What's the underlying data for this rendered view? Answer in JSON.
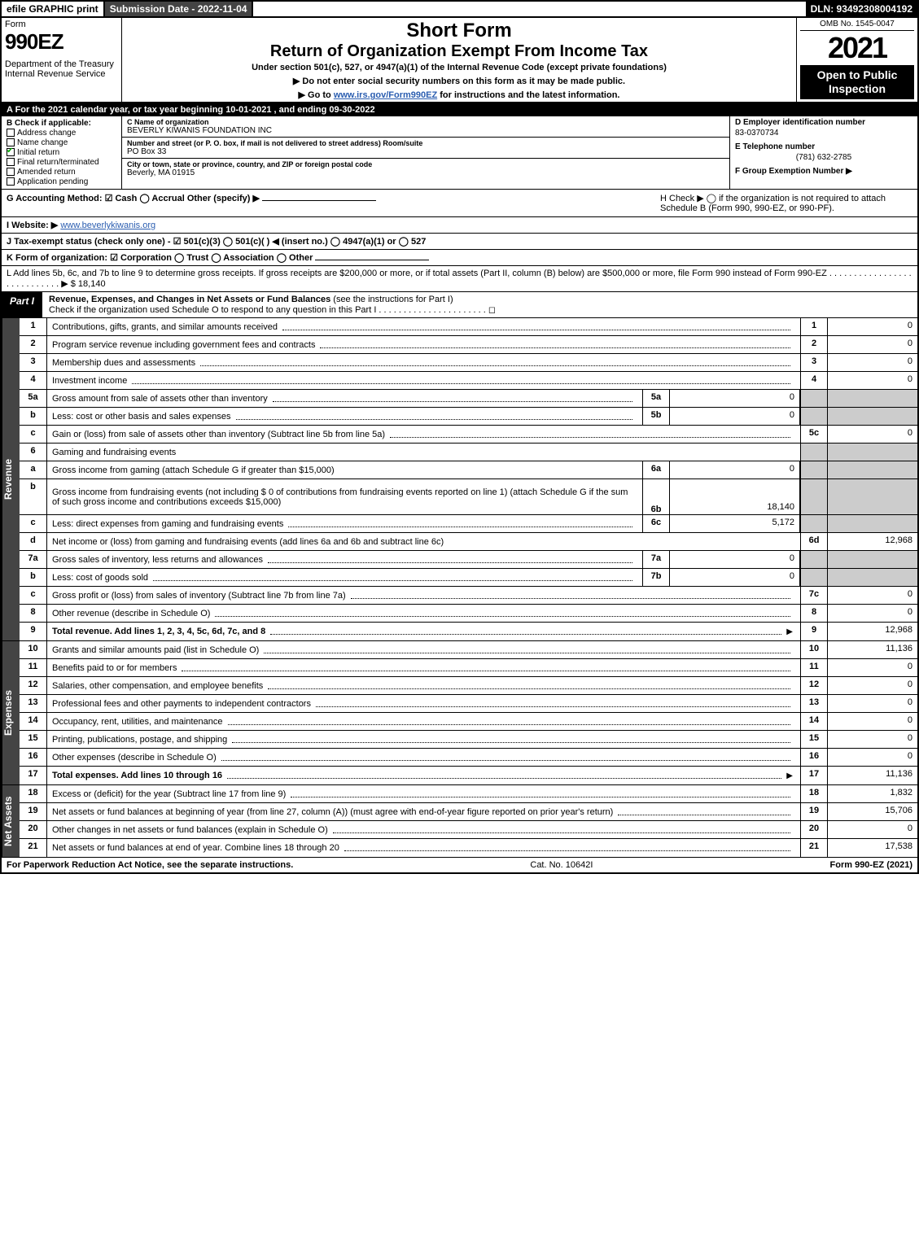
{
  "topbar": {
    "efile": "efile GRAPHIC print",
    "submission": "Submission Date - 2022-11-04",
    "dln": "DLN: 93492308004192"
  },
  "header": {
    "form_word": "Form",
    "form_no": "990EZ",
    "dept": "Department of the Treasury\nInternal Revenue Service",
    "short_form": "Short Form",
    "title": "Return of Organization Exempt From Income Tax",
    "sub1": "Under section 501(c), 527, or 4947(a)(1) of the Internal Revenue Code (except private foundations)",
    "sub2a": "▶ Do not enter social security numbers on this form as it may be made public.",
    "sub2b": "▶ Go to www.irs.gov/Form990EZ for instructions and the latest information.",
    "omb": "OMB No. 1545-0047",
    "year": "2021",
    "inspect": "Open to Public Inspection"
  },
  "lineA": "A  For the 2021 calendar year, or tax year beginning 10-01-2021 , and ending 09-30-2022",
  "colB": {
    "hdr": "B  Check if applicable:",
    "items": [
      {
        "label": "Address change",
        "checked": false
      },
      {
        "label": "Name change",
        "checked": false
      },
      {
        "label": "Initial return",
        "checked": true
      },
      {
        "label": "Final return/terminated",
        "checked": false
      },
      {
        "label": "Amended return",
        "checked": false
      },
      {
        "label": "Application pending",
        "checked": false
      }
    ]
  },
  "colC": {
    "name_lbl": "C Name of organization",
    "name": "BEVERLY KIWANIS FOUNDATION INC",
    "addr_lbl": "Number and street (or P. O. box, if mail is not delivered to street address)          Room/suite",
    "addr": "PO Box 33",
    "city_lbl": "City or town, state or province, country, and ZIP or foreign postal code",
    "city": "Beverly, MA  01915"
  },
  "colD": {
    "hdr": "D Employer identification number",
    "ein": "83-0370734",
    "tel_lbl": "E Telephone number",
    "tel": "(781) 632-2785",
    "grp_lbl": "F Group Exemption Number  ▶"
  },
  "lineG": "G Accounting Method:   ☑ Cash  ◯ Accrual   Other (specify) ▶",
  "lineH": "H  Check ▶  ◯ if the organization is not required to attach Schedule B (Form 990, 990-EZ, or 990-PF).",
  "lineI_lead": "I Website: ▶",
  "lineI_url": "www.beverlykiwanis.org",
  "lineJ": "J Tax-exempt status (check only one) - ☑ 501(c)(3) ◯ 501(c)(  ) ◀ (insert no.) ◯ 4947(a)(1) or ◯ 527",
  "lineK": "K Form of organization:   ☑ Corporation  ◯ Trust  ◯ Association  ◯ Other",
  "lineL": "L Add lines 5b, 6c, and 7b to line 9 to determine gross receipts. If gross receipts are $200,000 or more, or if total assets (Part II, column (B) below) are $500,000 or more, file Form 990 instead of Form 990-EZ  .  .  .  .  .  .  .  .  .  .  .  .  .  .  .  .  .  .  .  .  .  .  .  .  .  .  .  .  ▶ $ 18,140",
  "part1": {
    "label": "Part I",
    "title_b": "Revenue, Expenses, and Changes in Net Assets or Fund Balances",
    "title_rest": " (see the instructions for Part I)",
    "check_line": "Check if the organization used Schedule O to respond to any question in this Part I  .  .  .  .  .  .  .  .  .  .  .  .  .  .  .  .  .  .  .  .  .  .  ◻"
  },
  "side_labels": {
    "rev": "Revenue",
    "exp": "Expenses",
    "na": "Net Assets"
  },
  "rev_lines": [
    {
      "n": "1",
      "desc": "Contributions, gifts, grants, and similar amounts received",
      "rt": "1",
      "val": "0"
    },
    {
      "n": "2",
      "desc": "Program service revenue including government fees and contracts",
      "rt": "2",
      "val": "0"
    },
    {
      "n": "3",
      "desc": "Membership dues and assessments",
      "rt": "3",
      "val": "0"
    },
    {
      "n": "4",
      "desc": "Investment income",
      "rt": "4",
      "val": "0"
    }
  ],
  "line5a": {
    "n": "5a",
    "desc": "Gross amount from sale of assets other than inventory",
    "sub": "5a",
    "subval": "0"
  },
  "line5b": {
    "n": "b",
    "desc": "Less: cost or other basis and sales expenses",
    "sub": "5b",
    "subval": "0"
  },
  "line5c": {
    "n": "c",
    "desc": "Gain or (loss) from sale of assets other than inventory (Subtract line 5b from line 5a)",
    "rt": "5c",
    "val": "0"
  },
  "line6": {
    "n": "6",
    "desc": "Gaming and fundraising events"
  },
  "line6a": {
    "n": "a",
    "desc": "Gross income from gaming (attach Schedule G if greater than $15,000)",
    "sub": "6a",
    "subval": "0"
  },
  "line6b": {
    "n": "b",
    "desc": "Gross income from fundraising events (not including $ 0          of contributions from fundraising events reported on line 1) (attach Schedule G if the sum of such gross income and contributions exceeds $15,000)",
    "sub": "6b",
    "subval": "18,140"
  },
  "line6c": {
    "n": "c",
    "desc": "Less: direct expenses from gaming and fundraising events",
    "sub": "6c",
    "subval": "5,172"
  },
  "line6d": {
    "n": "d",
    "desc": "Net income or (loss) from gaming and fundraising events (add lines 6a and 6b and subtract line 6c)",
    "rt": "6d",
    "val": "12,968"
  },
  "line7a": {
    "n": "7a",
    "desc": "Gross sales of inventory, less returns and allowances",
    "sub": "7a",
    "subval": "0"
  },
  "line7b": {
    "n": "b",
    "desc": "Less: cost of goods sold",
    "sub": "7b",
    "subval": "0"
  },
  "line7c": {
    "n": "c",
    "desc": "Gross profit or (loss) from sales of inventory (Subtract line 7b from line 7a)",
    "rt": "7c",
    "val": "0"
  },
  "line8": {
    "n": "8",
    "desc": "Other revenue (describe in Schedule O)",
    "rt": "8",
    "val": "0"
  },
  "line9": {
    "n": "9",
    "desc": "Total revenue. Add lines 1, 2, 3, 4, 5c, 6d, 7c, and 8",
    "rt": "9",
    "val": "12,968",
    "bold": true,
    "arrow": true
  },
  "exp_lines": [
    {
      "n": "10",
      "desc": "Grants and similar amounts paid (list in Schedule O)",
      "rt": "10",
      "val": "11,136"
    },
    {
      "n": "11",
      "desc": "Benefits paid to or for members",
      "rt": "11",
      "val": "0"
    },
    {
      "n": "12",
      "desc": "Salaries, other compensation, and employee benefits",
      "rt": "12",
      "val": "0"
    },
    {
      "n": "13",
      "desc": "Professional fees and other payments to independent contractors",
      "rt": "13",
      "val": "0"
    },
    {
      "n": "14",
      "desc": "Occupancy, rent, utilities, and maintenance",
      "rt": "14",
      "val": "0"
    },
    {
      "n": "15",
      "desc": "Printing, publications, postage, and shipping",
      "rt": "15",
      "val": "0"
    },
    {
      "n": "16",
      "desc": "Other expenses (describe in Schedule O)",
      "rt": "16",
      "val": "0"
    },
    {
      "n": "17",
      "desc": "Total expenses. Add lines 10 through 16",
      "rt": "17",
      "val": "11,136",
      "bold": true,
      "arrow": true
    }
  ],
  "na_lines": [
    {
      "n": "18",
      "desc": "Excess or (deficit) for the year (Subtract line 17 from line 9)",
      "rt": "18",
      "val": "1,832"
    },
    {
      "n": "19",
      "desc": "Net assets or fund balances at beginning of year (from line 27, column (A)) (must agree with end-of-year figure reported on prior year's return)",
      "rt": "19",
      "val": "15,706"
    },
    {
      "n": "20",
      "desc": "Other changes in net assets or fund balances (explain in Schedule O)",
      "rt": "20",
      "val": "0"
    },
    {
      "n": "21",
      "desc": "Net assets or fund balances at end of year. Combine lines 18 through 20",
      "rt": "21",
      "val": "17,538"
    }
  ],
  "footer": {
    "left": "For Paperwork Reduction Act Notice, see the separate instructions.",
    "mid": "Cat. No. 10642I",
    "right": "Form 990-EZ (2021)"
  },
  "colors": {
    "black": "#000000",
    "darkgray": "#444444",
    "shade": "#cccccc",
    "link": "#2a5db0",
    "check_green": "#00aa00"
  }
}
